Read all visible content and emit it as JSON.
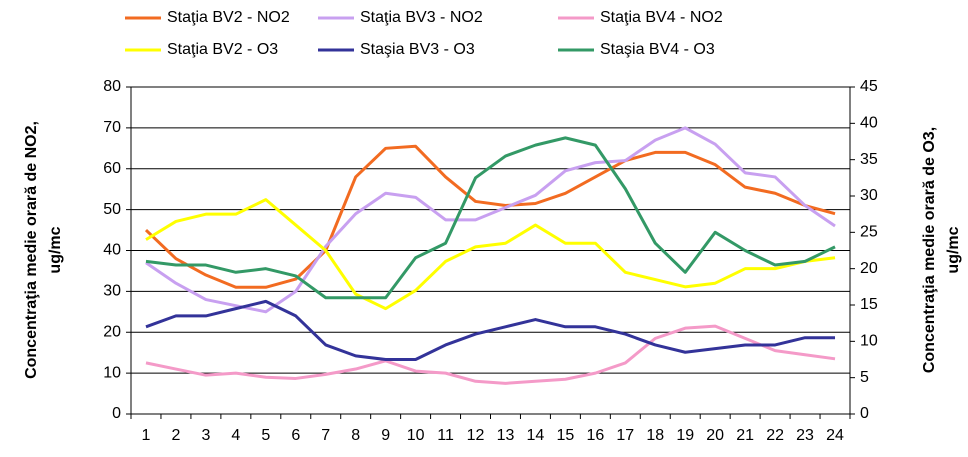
{
  "chart_data": {
    "type": "line",
    "ylabel": [
      "Concentraţia medie orară de NO2,",
      "ug/mc"
    ],
    "y2label": [
      "Concentraţia medie orară de O3,",
      "ug/mc"
    ],
    "categories": [
      "1",
      "2",
      "3",
      "4",
      "5",
      "6",
      "7",
      "8",
      "9",
      "10",
      "11",
      "12",
      "13",
      "14",
      "15",
      "16",
      "17",
      "18",
      "19",
      "20",
      "21",
      "22",
      "23",
      "24"
    ],
    "ylim": [
      0,
      80
    ],
    "yticks": [
      0,
      10,
      20,
      30,
      40,
      50,
      60,
      70,
      80
    ],
    "y2lim": [
      0,
      45
    ],
    "y2ticks": [
      0,
      5,
      10,
      15,
      20,
      25,
      30,
      35,
      40,
      45
    ],
    "grid": true,
    "legend": "top",
    "series": [
      {
        "name": "Staţia BV2 - NO2",
        "color": "#f26b21",
        "values": [
          45,
          38,
          34,
          31,
          31,
          33,
          40,
          58,
          65,
          65.5,
          58,
          52,
          51,
          51.5,
          54,
          58,
          62,
          64,
          64,
          61,
          55.5,
          54,
          51,
          49
        ]
      },
      {
        "name": "Staţia BV3 - NO2",
        "color": "#c8a0f0",
        "values": [
          37,
          32,
          28,
          26.5,
          25,
          30,
          41,
          49,
          54,
          53,
          47.5,
          47.5,
          50.5,
          53.5,
          59.5,
          61.5,
          62,
          67,
          70,
          66,
          59,
          58,
          51,
          46
        ]
      },
      {
        "name": "Staţia BV4 - NO2",
        "color": "#f49ac8",
        "values": [
          12.5,
          11,
          9.5,
          10,
          9,
          8.7,
          9.7,
          11,
          13,
          10.5,
          10,
          8,
          7.5,
          8,
          8.5,
          10,
          12.5,
          18.5,
          21,
          21.5,
          18.5,
          15.5,
          14.5,
          13.5
        ]
      },
      {
        "name": "Staţia BV2 - O3",
        "color": "#ffff00",
        "axis": "y2",
        "values": [
          24,
          26.5,
          27.5,
          27.5,
          29.5,
          26,
          22.5,
          16.5,
          14.5,
          17,
          21,
          23,
          23.5,
          26,
          23.5,
          23.5,
          19.5,
          18.5,
          17.5,
          18,
          20,
          20,
          21,
          21.5
        ]
      },
      {
        "name": "Staşia BV3 - O3",
        "color": "#333399",
        "axis": "y2",
        "values": [
          12,
          13.5,
          13.5,
          14.5,
          15.5,
          13.5,
          9.5,
          8,
          7.5,
          7.5,
          9.5,
          11,
          12,
          13,
          12,
          12,
          11,
          9.5,
          8.5,
          9,
          9.5,
          9.5,
          10.5,
          10.5
        ]
      },
      {
        "name": "Staşia BV4 - O3",
        "color": "#339966",
        "axis": "y2",
        "values": [
          21,
          20.5,
          20.5,
          19.5,
          20,
          19,
          16,
          16,
          16,
          21.5,
          23.5,
          32.5,
          35.5,
          37,
          38,
          37,
          31,
          23.5,
          19.5,
          25,
          22.5,
          20.5,
          21,
          23
        ]
      }
    ]
  }
}
